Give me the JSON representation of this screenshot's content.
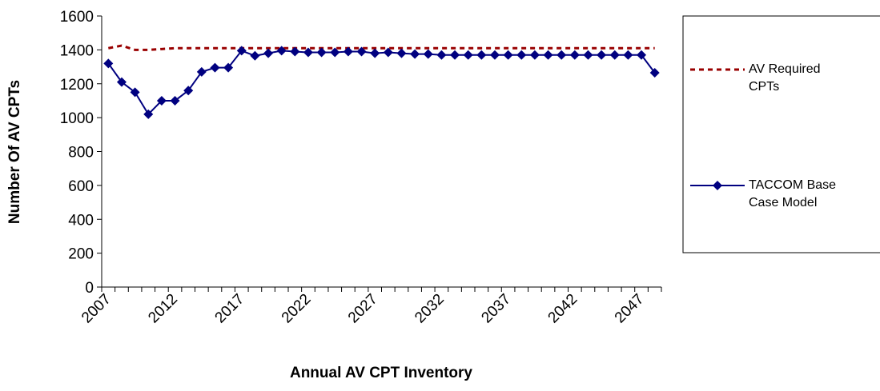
{
  "chart_data": {
    "type": "line",
    "xlabel": "Annual AV CPT Inventory",
    "ylabel": "Number Of AV CPTs",
    "categories": [
      2007,
      null,
      null,
      null,
      null,
      2012,
      null,
      null,
      null,
      null,
      2017,
      null,
      null,
      null,
      null,
      2022,
      null,
      null,
      null,
      null,
      2027,
      null,
      null,
      null,
      null,
      2032,
      null,
      null,
      null,
      null,
      2037,
      null,
      null,
      null,
      null,
      2042,
      null,
      null,
      null,
      null,
      2047,
      null
    ],
    "series": [
      {
        "name": "AV Required CPTs",
        "color": "#990000",
        "dashed": true,
        "values": [
          1410,
          1425,
          1400,
          1400,
          1405,
          1410,
          1410,
          1410,
          1410,
          1410,
          1410,
          1410,
          1410,
          1410,
          1410,
          1410,
          1410,
          1410,
          1410,
          1410,
          1410,
          1410,
          1410,
          1410,
          1410,
          1410,
          1410,
          1410,
          1410,
          1410,
          1410,
          1410,
          1410,
          1410,
          1410,
          1410,
          1410,
          1410,
          1410,
          1410,
          1410,
          1410
        ]
      },
      {
        "name": "TACCOM Base Case Model",
        "color": "#000080",
        "marker": "diamond",
        "values": [
          1320,
          1210,
          1150,
          1020,
          1100,
          1100,
          1160,
          1270,
          1295,
          1295,
          1395,
          1365,
          1380,
          1395,
          1390,
          1385,
          1385,
          1385,
          1390,
          1390,
          1380,
          1385,
          1380,
          1375,
          1375,
          1370,
          1370,
          1370,
          1370,
          1370,
          1370,
          1370,
          1370,
          1370,
          1370,
          1370,
          1370,
          1370,
          1370,
          1370,
          1370,
          1265
        ]
      }
    ],
    "ylim": [
      0,
      1600
    ],
    "yticks": [
      0,
      200,
      400,
      600,
      800,
      1000,
      1200,
      1400,
      1600
    ],
    "grid": false,
    "legend": "right"
  }
}
